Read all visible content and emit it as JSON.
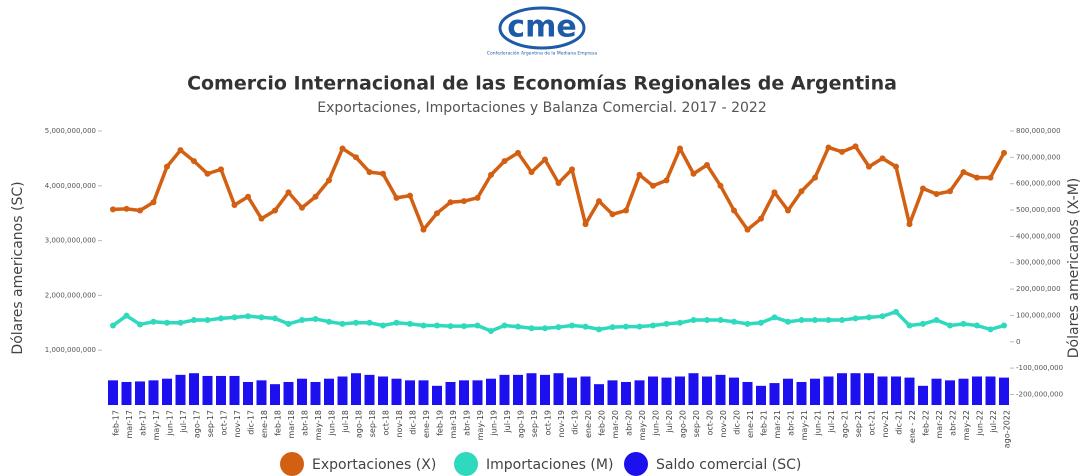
{
  "logo": {
    "text": "cme",
    "caption": "Confederación Argentina de la Mediana Empresa"
  },
  "chart_data": {
    "type": "line",
    "title": "Comercio Internacional de las Economías Regionales de Argentina",
    "subtitle": "Exportaciones, Importaciones y Balanza Comercial. 2017 - 2022",
    "y_label": "Dólares americanos (SC)",
    "y2_label": "Dólares americanos (X-M)",
    "categories": [
      "feb-17",
      "mar-17",
      "abr-17",
      "may-17",
      "jun-17",
      "jul-17",
      "ago-17",
      "sep-17",
      "oct-17",
      "nov-17",
      "dic-17",
      "ene-18",
      "feb-18",
      "mar-18",
      "abr-18",
      "may-18",
      "jun-18",
      "jul-18",
      "ago-18",
      "sep-18",
      "oct-18",
      "nov-18",
      "dic-18",
      "ene-19",
      "feb-19",
      "mar-19",
      "abr-19",
      "may-19",
      "jun-19",
      "jul-19",
      "ago-19",
      "sep-19",
      "oct-19",
      "nov-19",
      "dic-19",
      "ene-20",
      "feb-20",
      "mar-20",
      "abr-20",
      "may-20",
      "jun-20",
      "jul-20",
      "ago-20",
      "sep-20",
      "oct-20",
      "nov-20",
      "dic-20",
      "ene-21",
      "feb-21",
      "mar-21",
      "abr-21",
      "may-21",
      "jun-21",
      "jul-21",
      "ago-21",
      "sep-21",
      "oct-21",
      "nov-21",
      "dic-21",
      "ene - 22",
      "feb-22",
      "mar-22",
      "abr-22",
      "may-22",
      "jun-22",
      "jul-22",
      "ago-2022"
    ],
    "series": [
      {
        "name": "Exportaciones (X)",
        "kind": "line",
        "color": "#d35f12",
        "values": [
          3570000000.0,
          3580000000.0,
          3550000000.0,
          3700000000.0,
          4350000000.0,
          4650000000.0,
          4450000000.0,
          4220000000.0,
          4300000000.0,
          3650000000.0,
          3800000000.0,
          3400000000.0,
          3550000000.0,
          3880000000.0,
          3600000000.0,
          3800000000.0,
          4100000000.0,
          4680000000.0,
          4520000000.0,
          4250000000.0,
          4220000000.0,
          3780000000.0,
          3820000000.0,
          3200000000.0,
          3500000000.0,
          3700000000.0,
          3720000000.0,
          3780000000.0,
          4200000000.0,
          4450000000.0,
          4600000000.0,
          4250000000.0,
          4480000000.0,
          4050000000.0,
          4300000000.0,
          3300000000.0,
          3720000000.0,
          3480000000.0,
          3550000000.0,
          4200000000.0,
          4000000000.0,
          4100000000.0,
          4680000000.0,
          4220000000.0,
          4380000000.0,
          4000000000.0,
          3550000000.0,
          3200000000.0,
          3400000000.0,
          3880000000.0,
          3550000000.0,
          3900000000.0,
          4150000000.0,
          4700000000.0,
          4620000000.0,
          4720000000.0,
          4350000000.0,
          4500000000.0,
          4350000000.0,
          3300000000.0,
          3950000000.0,
          3850000000.0,
          3900000000.0,
          4250000000.0,
          4150000000.0,
          4150000000.0,
          4600000000.0
        ]
      },
      {
        "name": "Importaciones (M)",
        "kind": "line",
        "color": "#2fd9bd",
        "values": [
          1450000000.0,
          1630000000.0,
          1470000000.0,
          1520000000.0,
          1500000000.0,
          1500000000.0,
          1550000000.0,
          1550000000.0,
          1580000000.0,
          1600000000.0,
          1620000000.0,
          1600000000.0,
          1580000000.0,
          1480000000.0,
          1550000000.0,
          1570000000.0,
          1520000000.0,
          1480000000.0,
          1500000000.0,
          1500000000.0,
          1450000000.0,
          1500000000.0,
          1480000000.0,
          1450000000.0,
          1450000000.0,
          1440000000.0,
          1440000000.0,
          1450000000.0,
          1350000000.0,
          1450000000.0,
          1430000000.0,
          1400000000.0,
          1400000000.0,
          1420000000.0,
          1450000000.0,
          1430000000.0,
          1380000000.0,
          1420000000.0,
          1430000000.0,
          1430000000.0,
          1450000000.0,
          1480000000.0,
          1500000000.0,
          1550000000.0,
          1550000000.0,
          1550000000.0,
          1520000000.0,
          1480000000.0,
          1500000000.0,
          1600000000.0,
          1520000000.0,
          1550000000.0,
          1550000000.0,
          1550000000.0,
          1550000000.0,
          1580000000.0,
          1600000000.0,
          1620000000.0,
          1700000000.0,
          1450000000.0,
          1480000000.0,
          1550000000.0,
          1450000000.0,
          1480000000.0,
          1450000000.0,
          1380000000.0,
          1450000000.0
        ]
      },
      {
        "name": "Saldo comercial (SC)",
        "kind": "bar",
        "color": "#1c10ee",
        "values": [
          450000000.0,
          420000000.0,
          430000000.0,
          450000000.0,
          480000000.0,
          550000000.0,
          580000000.0,
          530000000.0,
          530000000.0,
          530000000.0,
          420000000.0,
          450000000.0,
          380000000.0,
          420000000.0,
          480000000.0,
          420000000.0,
          480000000.0,
          520000000.0,
          580000000.0,
          550000000.0,
          520000000.0,
          480000000.0,
          450000000.0,
          450000000.0,
          350000000.0,
          420000000.0,
          450000000.0,
          450000000.0,
          480000000.0,
          550000000.0,
          550000000.0,
          580000000.0,
          550000000.0,
          580000000.0,
          500000000.0,
          520000000.0,
          380000000.0,
          450000000.0,
          420000000.0,
          450000000.0,
          520000000.0,
          500000000.0,
          520000000.0,
          580000000.0,
          520000000.0,
          550000000.0,
          500000000.0,
          420000000.0,
          350000000.0,
          400000000.0,
          480000000.0,
          420000000.0,
          480000000.0,
          520000000.0,
          580000000.0,
          580000000.0,
          580000000.0,
          520000000.0,
          520000000.0,
          500000000.0,
          350000000.0,
          480000000.0,
          450000000.0,
          480000000.0,
          520000000.0,
          520000000.0,
          500000000.0
        ]
      }
    ],
    "ylim": [
      0,
      5000000000
    ],
    "yticks": [
      {
        "value": 1000000000,
        "label": "1,000,000,000"
      },
      {
        "value": 2000000000,
        "label": "2,000,000,000"
      },
      {
        "value": 3000000000,
        "label": "3,000,000,000"
      },
      {
        "value": 4000000000,
        "label": "4,000,000,000"
      },
      {
        "value": 5000000000,
        "label": "5,000,000,000"
      }
    ],
    "y2lim": [
      -240000000,
      800000000
    ],
    "y2ticks": [
      {
        "value": 800000000,
        "label": "800,000,000"
      },
      {
        "value": 700000000,
        "label": "700,000,000"
      },
      {
        "value": 600000000,
        "label": "600,000,000"
      },
      {
        "value": 500000000,
        "label": "500,000,000"
      },
      {
        "value": 400000000,
        "label": "400,000,000"
      },
      {
        "value": 300000000,
        "label": "300,000,000"
      },
      {
        "value": 200000000,
        "label": "200,000,000"
      },
      {
        "value": 100000000,
        "label": "100,000,000"
      },
      0,
      {
        "value": -100000000,
        "label": "-100,000,000"
      },
      {
        "value": -200000000,
        "label": "-200,000,000"
      }
    ],
    "legend": "bottom"
  }
}
